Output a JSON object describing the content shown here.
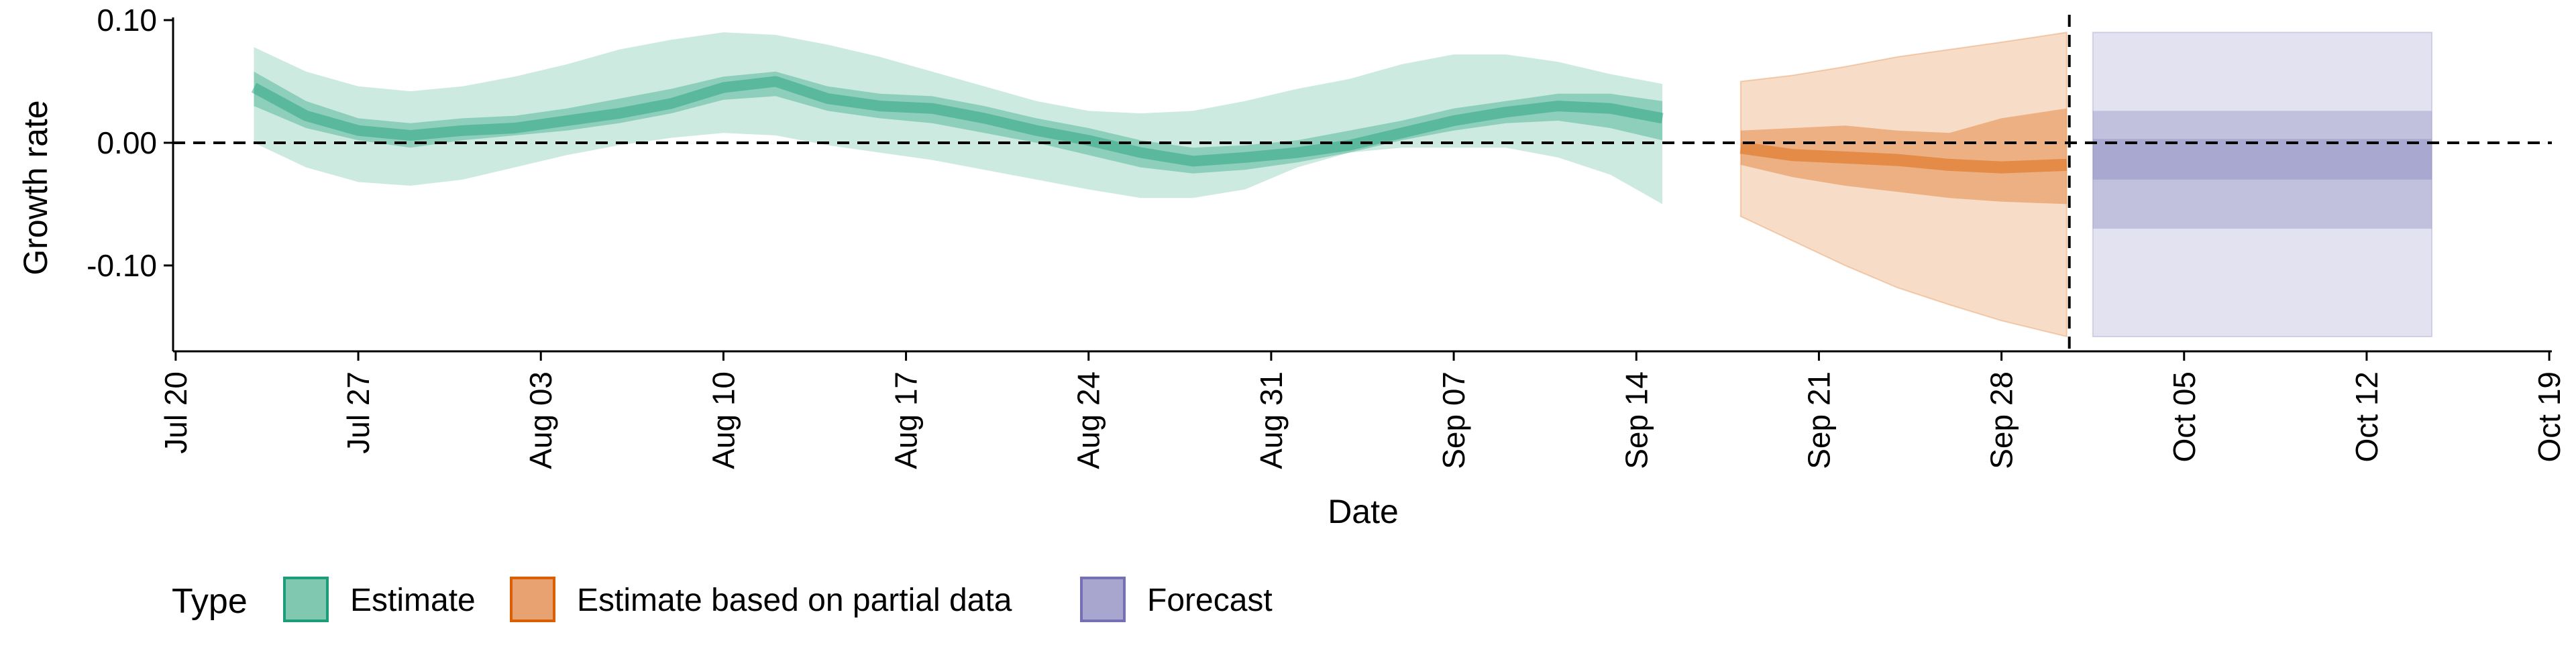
{
  "chart_data": {
    "type": "area",
    "xlabel": "Date",
    "ylabel": "Growth rate",
    "x_tick_labels": [
      "Jul 20",
      "Jul 27",
      "Aug 03",
      "Aug 10",
      "Aug 17",
      "Aug 24",
      "Aug 31",
      "Sep 07",
      "Sep 14",
      "Sep 21",
      "Sep 28",
      "Oct 05",
      "Oct 12",
      "Oct 19"
    ],
    "y_tick_labels": [
      "0.10",
      "0.00",
      "-0.10"
    ],
    "y_ticks": [
      0.1,
      0.0,
      -0.1
    ],
    "x_domain": [
      -0.1,
      91.1
    ],
    "ylim": [
      -0.17,
      0.1
    ],
    "reference_lines": {
      "horizontal_y": 0.0,
      "vertical_x_day": 72.6
    },
    "x_unit": "days since Jul 20",
    "legend": {
      "title": "Type",
      "position": "bottom-left",
      "items": [
        {
          "label": "Estimate",
          "fill": "#80c8b0",
          "stroke": "#1b9e77"
        },
        {
          "label": "Estimate based on partial data",
          "fill": "#e8a170",
          "stroke": "#d95f02"
        },
        {
          "label": "Forecast",
          "fill": "#a8a6cf",
          "stroke": "#7570b3"
        }
      ]
    },
    "series": [
      {
        "name": "Estimate",
        "color": "#1b9e77",
        "day": [
          3,
          5,
          7,
          9,
          11,
          13,
          15,
          17,
          19,
          21,
          23,
          25,
          27,
          29,
          31,
          33,
          35,
          37,
          39,
          41,
          43,
          45,
          47,
          49,
          51,
          53,
          55,
          57
        ],
        "median": [
          0.045,
          0.022,
          0.01,
          0.006,
          0.01,
          0.012,
          0.018,
          0.024,
          0.032,
          0.045,
          0.05,
          0.036,
          0.03,
          0.028,
          0.02,
          0.01,
          0.002,
          -0.008,
          -0.015,
          -0.012,
          -0.008,
          -0.002,
          0.008,
          0.018,
          0.025,
          0.03,
          0.028,
          0.02
        ],
        "lower_50": [
          0.03,
          0.012,
          0.002,
          -0.004,
          0.002,
          0.006,
          0.01,
          0.016,
          0.024,
          0.035,
          0.038,
          0.026,
          0.02,
          0.016,
          0.008,
          0.0,
          -0.01,
          -0.02,
          -0.025,
          -0.022,
          -0.016,
          -0.008,
          0.002,
          0.01,
          0.016,
          0.018,
          0.012,
          0.002
        ],
        "upper_50": [
          0.058,
          0.034,
          0.02,
          0.016,
          0.02,
          0.022,
          0.028,
          0.036,
          0.044,
          0.054,
          0.058,
          0.046,
          0.04,
          0.038,
          0.03,
          0.02,
          0.012,
          0.002,
          -0.004,
          -0.002,
          0.002,
          0.01,
          0.018,
          0.028,
          0.034,
          0.04,
          0.04,
          0.034
        ],
        "lower_90": [
          0.0,
          -0.02,
          -0.032,
          -0.035,
          -0.03,
          -0.02,
          -0.01,
          -0.002,
          0.004,
          0.008,
          0.006,
          -0.002,
          -0.008,
          -0.014,
          -0.022,
          -0.03,
          -0.038,
          -0.045,
          -0.045,
          -0.038,
          -0.02,
          -0.008,
          -0.004,
          -0.004,
          -0.004,
          -0.012,
          -0.026,
          -0.05
        ],
        "upper_90": [
          0.078,
          0.058,
          0.046,
          0.042,
          0.046,
          0.054,
          0.064,
          0.076,
          0.084,
          0.09,
          0.088,
          0.08,
          0.07,
          0.058,
          0.046,
          0.034,
          0.026,
          0.024,
          0.026,
          0.034,
          0.044,
          0.052,
          0.064,
          0.072,
          0.072,
          0.066,
          0.056,
          0.048
        ]
      },
      {
        "name": "Estimate based on partial data",
        "color": "#d95f02",
        "day": [
          60,
          62,
          64,
          66,
          68,
          70,
          72.5
        ],
        "median": [
          -0.004,
          -0.01,
          -0.012,
          -0.014,
          -0.018,
          -0.02,
          -0.018
        ],
        "lower_50": [
          -0.018,
          -0.028,
          -0.035,
          -0.04,
          -0.045,
          -0.048,
          -0.05
        ],
        "upper_50": [
          0.01,
          0.012,
          0.014,
          0.01,
          0.008,
          0.02,
          0.028
        ],
        "lower_90": [
          -0.06,
          -0.08,
          -0.1,
          -0.118,
          -0.132,
          -0.145,
          -0.158
        ],
        "upper_90": [
          0.05,
          0.055,
          0.062,
          0.07,
          0.076,
          0.082,
          0.09
        ]
      },
      {
        "name": "Forecast",
        "color": "#7570b3",
        "day_range": [
          73.5,
          86.5
        ],
        "median": -0.003,
        "lower_30": -0.03,
        "upper_30": 0.003,
        "lower_60": -0.07,
        "upper_60": 0.026,
        "lower_90": -0.158,
        "upper_90": 0.09
      }
    ]
  }
}
